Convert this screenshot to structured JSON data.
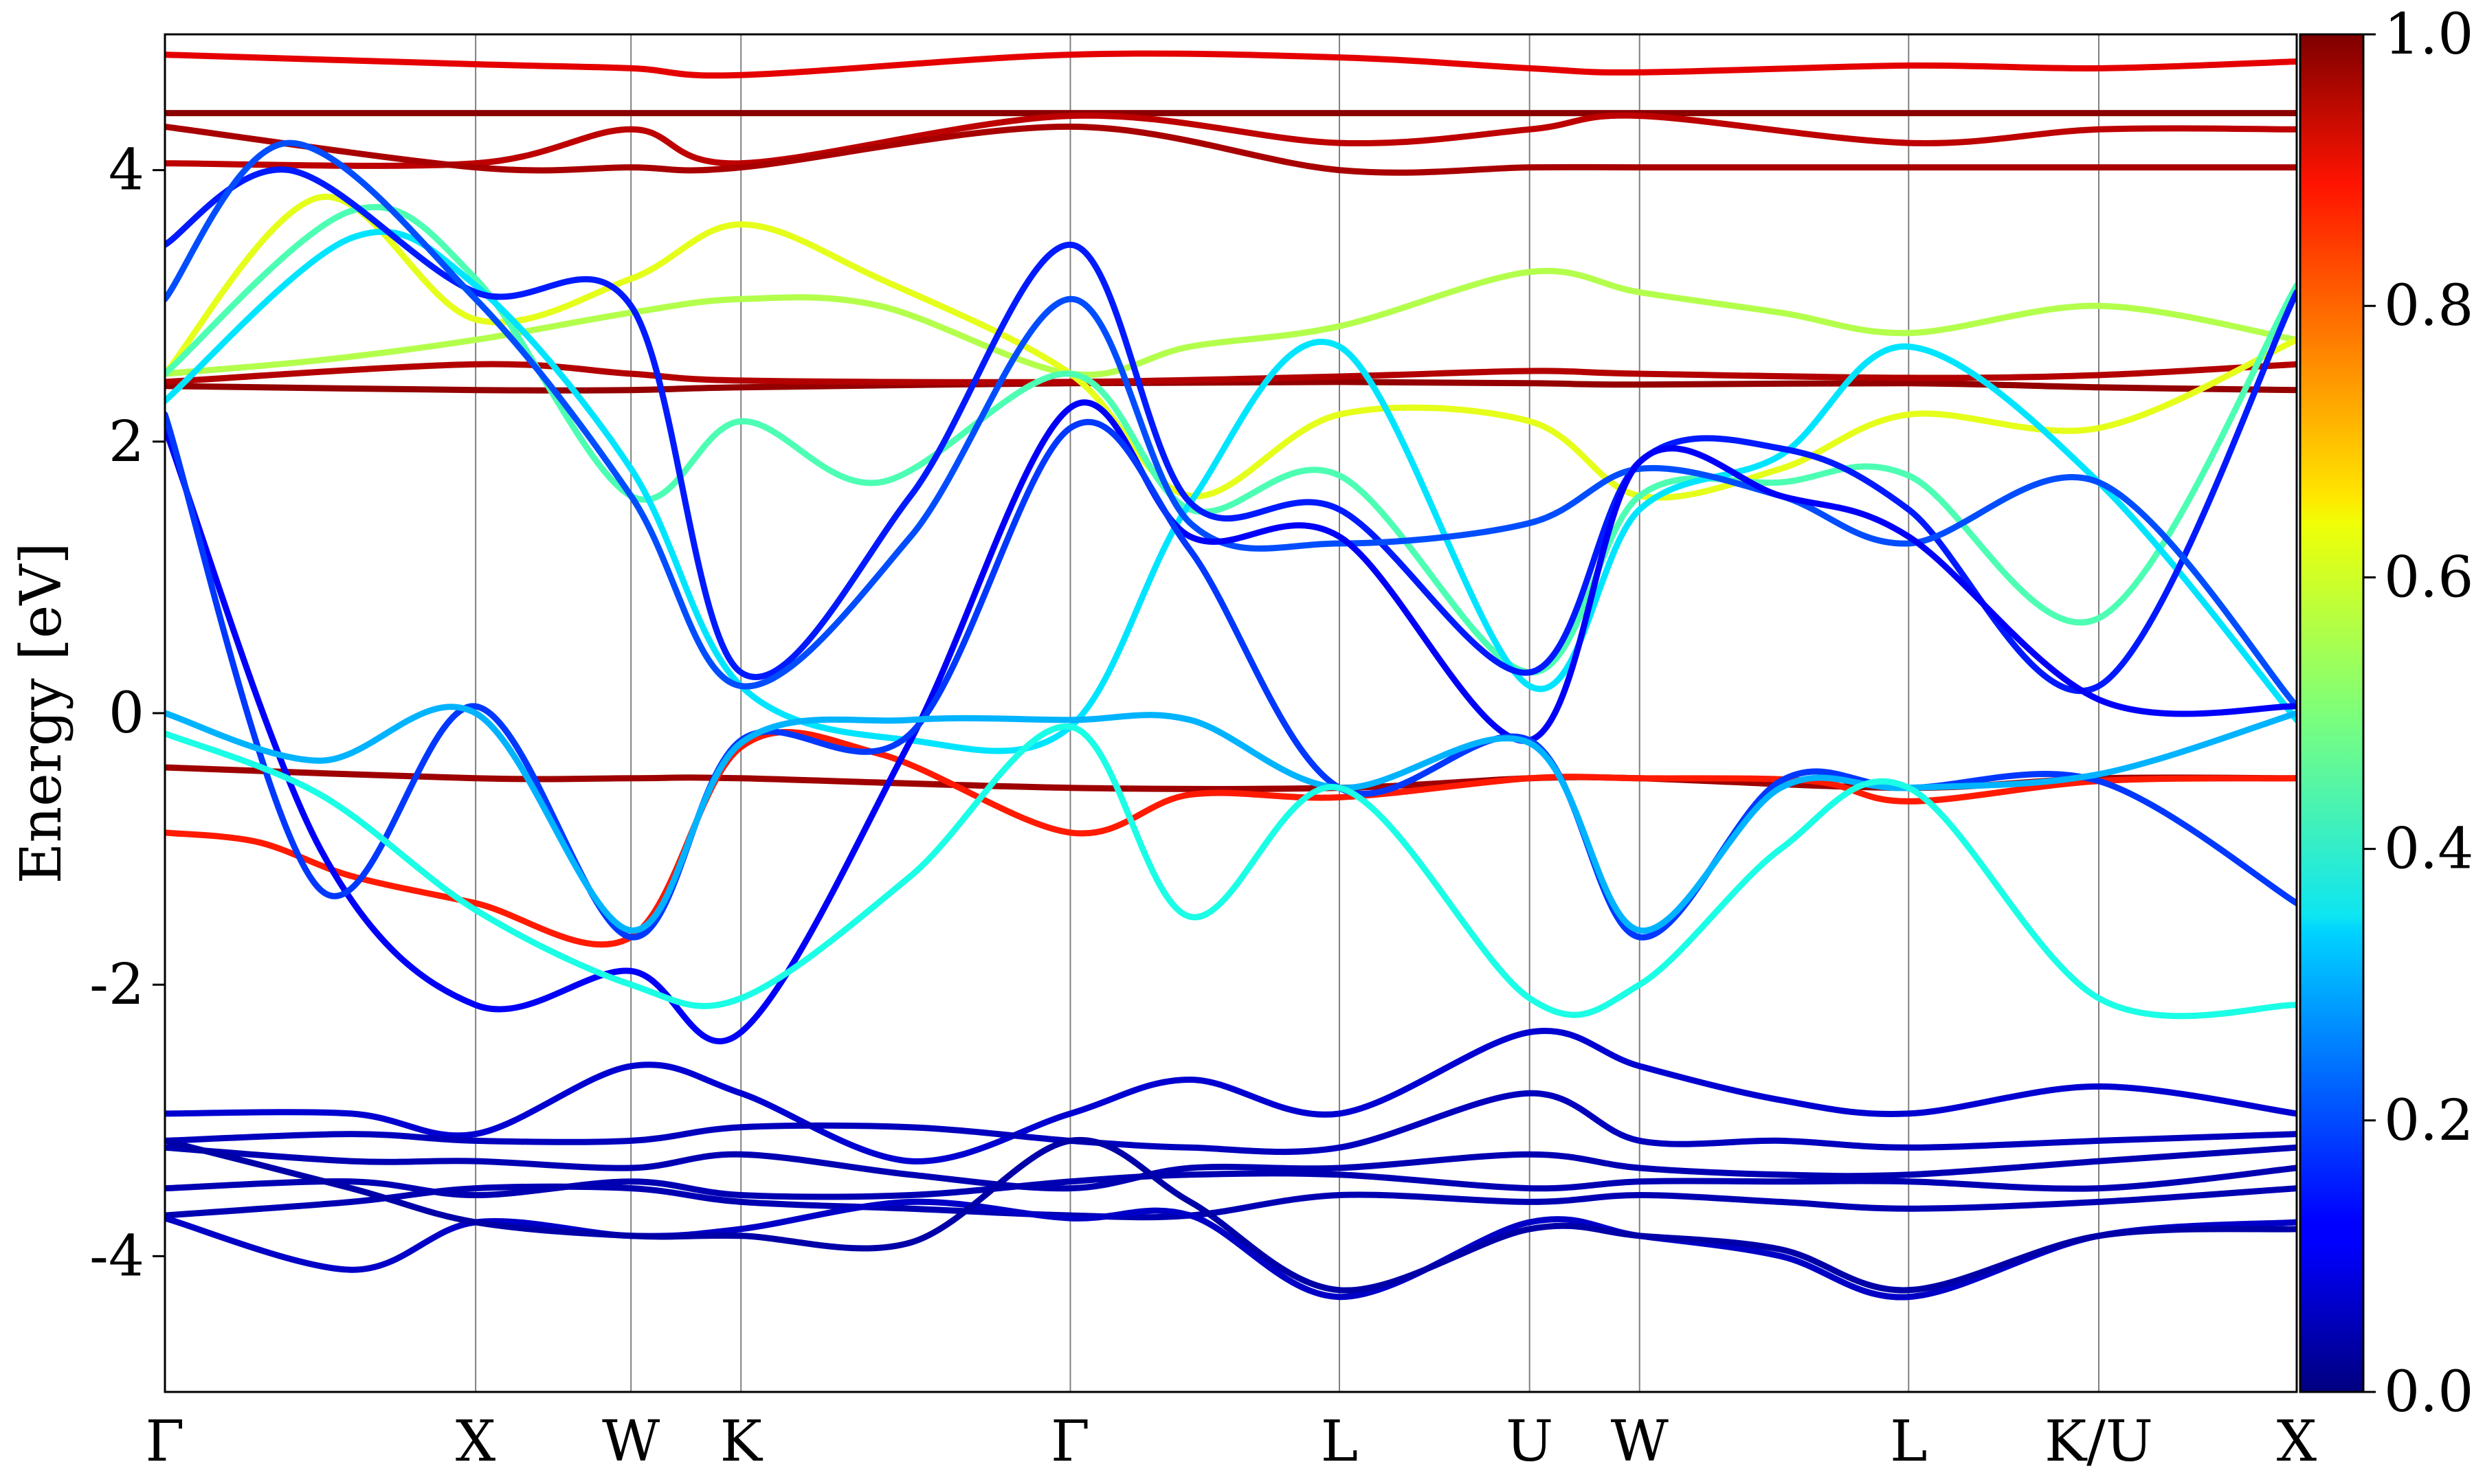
{
  "chart_data": {
    "type": "line",
    "title": "",
    "ylabel": "Energy [eV]",
    "xlabel": "",
    "ylim": [
      -5,
      5
    ],
    "yticks": [
      -4,
      -2,
      0,
      2,
      4
    ],
    "ytick_labels": [
      "-4",
      "-2",
      "0",
      "2",
      "4"
    ],
    "kpath_labels": [
      "Γ",
      "X",
      "W",
      "K",
      "Γ",
      "L",
      "U",
      "W",
      "L",
      "K/U",
      "X"
    ],
    "kpath_positions": [
      0.0,
      1.0,
      1.5,
      1.854,
      2.914,
      3.78,
      4.392,
      4.746,
      5.612,
      6.224,
      6.861
    ],
    "colorbar": {
      "min": 0.0,
      "max": 1.0,
      "tick_labels": [
        "0.0",
        "0.2",
        "0.4",
        "0.6",
        "0.8",
        "1.0"
      ],
      "colormap": "jet"
    },
    "series": [
      {
        "color": 0.98,
        "k": [
          0,
          1,
          1.5,
          1.854,
          2.914,
          3.78,
          4.392,
          4.746,
          5.612,
          6.224,
          6.861
        ],
        "e": [
          2.41,
          2.38,
          2.38,
          2.4,
          2.43,
          2.44,
          2.43,
          2.42,
          2.43,
          2.4,
          2.38
        ]
      },
      {
        "color": 0.95,
        "k": [
          0,
          1,
          1.5,
          1.854,
          2.914,
          3.78,
          4.392,
          4.746,
          5.612,
          6.224,
          6.861
        ],
        "e": [
          2.44,
          2.57,
          2.5,
          2.45,
          2.44,
          2.48,
          2.52,
          2.5,
          2.47,
          2.49,
          2.57
        ]
      },
      {
        "color": 0.99,
        "k": [
          0,
          1,
          1.5,
          1.854,
          2.914,
          3.78,
          4.392,
          4.746,
          5.612,
          6.224,
          6.861
        ],
        "e": [
          4.42,
          4.42,
          4.42,
          4.42,
          4.42,
          4.42,
          4.42,
          4.42,
          4.42,
          4.42,
          4.42
        ]
      },
      {
        "color": 0.9,
        "k": [
          0,
          1,
          1.5,
          1.854,
          2.914,
          3.78,
          4.392,
          4.746,
          5.612,
          6.224,
          6.861
        ],
        "e": [
          4.85,
          4.78,
          4.75,
          4.7,
          4.85,
          4.83,
          4.75,
          4.72,
          4.77,
          4.75,
          4.8
        ]
      },
      {
        "color": 0.94,
        "k": [
          0,
          1,
          1.5,
          1.854,
          2.914,
          3.78,
          4.392,
          4.746,
          5.612,
          6.224,
          6.861
        ],
        "e": [
          4.05,
          4.05,
          4.3,
          4.05,
          4.4,
          4.2,
          4.3,
          4.4,
          4.2,
          4.3,
          4.3
        ]
      },
      {
        "color": 0.96,
        "k": [
          0,
          1,
          1.5,
          1.854,
          2.914,
          3.78,
          4.392,
          4.746,
          5.612,
          6.224,
          6.861
        ],
        "e": [
          4.32,
          4.02,
          4.02,
          4.02,
          4.32,
          4.0,
          4.02,
          4.02,
          4.02,
          4.02,
          4.02
        ]
      },
      {
        "color": 0.97,
        "k": [
          0,
          1,
          1.5,
          1.854,
          2.914,
          3.78,
          4.392,
          4.746,
          5.612,
          6.224,
          6.861
        ],
        "e": [
          -0.4,
          -0.48,
          -0.48,
          -0.48,
          -0.55,
          -0.55,
          -0.48,
          -0.48,
          -0.55,
          -0.48,
          -0.48
        ]
      },
      {
        "color": 0.85,
        "k": [
          0,
          0.3,
          0.6,
          1,
          1.5,
          1.854,
          2.3,
          2.914,
          3.3,
          3.78,
          4.392,
          4.746,
          5.3,
          5.612,
          6.224,
          6.861
        ],
        "e": [
          -0.88,
          -0.95,
          -1.2,
          -1.4,
          -1.65,
          -0.25,
          -0.3,
          -0.88,
          -0.6,
          -0.62,
          -0.48,
          -0.48,
          -0.5,
          -0.65,
          -0.5,
          -0.48
        ]
      },
      {
        "color": 0.55,
        "k": [
          0,
          0.5,
          1,
          1.5,
          1.854,
          2.3,
          2.914,
          3.3,
          3.78,
          4.392,
          4.746,
          5.2,
          5.612,
          6.224,
          6.861
        ],
        "e": [
          2.5,
          2.6,
          2.75,
          2.95,
          3.05,
          3.0,
          2.5,
          2.7,
          2.85,
          3.25,
          3.1,
          2.95,
          2.8,
          3.0,
          2.75
        ]
      },
      {
        "color": 0.6,
        "k": [
          0,
          0.5,
          1,
          1.5,
          1.854,
          2.3,
          2.914,
          3.3,
          3.78,
          4.392,
          4.746,
          5.2,
          5.612,
          6.224,
          6.861
        ],
        "e": [
          2.5,
          3.8,
          2.9,
          3.2,
          3.6,
          3.2,
          2.5,
          1.6,
          2.2,
          2.15,
          1.6,
          1.8,
          2.2,
          2.1,
          2.75
        ]
      },
      {
        "color": 0.45,
        "k": [
          0,
          0.6,
          1,
          1.5,
          1.854,
          2.3,
          2.914,
          3.3,
          3.78,
          4.392,
          4.746,
          5.2,
          5.612,
          6.224,
          6.861
        ],
        "e": [
          2.5,
          3.7,
          3.2,
          1.6,
          2.15,
          1.7,
          2.5,
          1.5,
          1.75,
          0.3,
          1.6,
          1.7,
          1.75,
          0.7,
          3.15
        ]
      },
      {
        "color": 0.35,
        "k": [
          0,
          0.6,
          1,
          1.5,
          1.854,
          2.4,
          2.914,
          3.3,
          3.78,
          4.392,
          4.746,
          5.2,
          5.612,
          6.224,
          6.861
        ],
        "e": [
          2.3,
          3.5,
          3.15,
          1.8,
          0.2,
          -0.2,
          -0.1,
          1.55,
          2.7,
          0.2,
          1.5,
          1.9,
          2.7,
          1.7,
          -0.05
        ]
      },
      {
        "color": 0.15,
        "k": [
          0,
          0.4,
          1,
          1.5,
          1.854,
          2.4,
          2.914,
          3.3,
          3.78,
          4.392,
          4.746,
          5.2,
          5.612,
          6.224,
          6.861
        ],
        "e": [
          3.45,
          4.0,
          3.1,
          3.0,
          0.3,
          1.6,
          3.45,
          1.55,
          1.5,
          0.3,
          1.85,
          1.95,
          1.5,
          0.2,
          3.1
        ]
      },
      {
        "color": 0.2,
        "k": [
          0,
          0.4,
          1,
          1.5,
          1.854,
          2.4,
          2.914,
          3.3,
          3.78,
          4.392,
          4.746,
          5.2,
          5.612,
          6.224,
          6.861
        ],
        "e": [
          3.05,
          4.2,
          3.05,
          1.6,
          0.2,
          1.3,
          3.05,
          1.4,
          1.25,
          1.4,
          1.8,
          1.6,
          1.25,
          1.7,
          0.05
        ]
      },
      {
        "color": 0.12,
        "k": [
          0,
          0.5,
          1,
          1.5,
          1.854,
          2.4,
          2.914,
          3.3,
          3.78,
          4.392,
          4.746,
          5.2,
          5.612,
          6.224,
          6.861
        ],
        "e": [
          2.1,
          -1.0,
          -2.15,
          -1.9,
          -2.35,
          -0.2,
          2.25,
          1.3,
          1.3,
          -0.2,
          1.85,
          1.6,
          1.3,
          0.1,
          0.05
        ]
      },
      {
        "color": 0.18,
        "k": [
          0,
          0.5,
          1,
          1.5,
          1.854,
          2.4,
          2.914,
          3.3,
          3.78,
          4.392,
          4.746,
          5.2,
          5.612,
          6.224,
          6.861
        ],
        "e": [
          2.2,
          -1.3,
          0.05,
          -1.65,
          -0.2,
          -0.15,
          2.1,
          1.2,
          -0.55,
          -0.2,
          -1.65,
          -0.5,
          -0.55,
          -0.5,
          -1.4
        ]
      },
      {
        "color": 0.3,
        "k": [
          0,
          0.5,
          1,
          1.5,
          1.854,
          2.4,
          2.914,
          3.3,
          3.78,
          4.392,
          4.746,
          5.2,
          5.612,
          6.224,
          6.861
        ],
        "e": [
          0.0,
          -0.35,
          0.0,
          -1.6,
          -0.22,
          -0.05,
          -0.05,
          -0.05,
          -0.55,
          -0.22,
          -1.6,
          -0.55,
          -0.55,
          -0.45,
          0.0
        ]
      },
      {
        "color": 0.4,
        "k": [
          0,
          0.5,
          1,
          1.5,
          1.854,
          2.4,
          2.914,
          3.3,
          3.78,
          4.392,
          4.746,
          5.2,
          5.612,
          6.224,
          6.861
        ],
        "e": [
          -0.15,
          -0.6,
          -1.45,
          -2.0,
          -2.1,
          -1.2,
          -0.1,
          -1.5,
          -0.55,
          -2.1,
          -2.0,
          -1.0,
          -0.55,
          -2.1,
          -2.15
        ]
      },
      {
        "color": 0.08,
        "k": [
          0,
          0.6,
          1,
          1.5,
          1.854,
          2.4,
          2.914,
          3.3,
          3.78,
          4.392,
          4.746,
          5.2,
          5.612,
          6.224,
          6.861
        ],
        "e": [
          -2.95,
          -2.95,
          -3.1,
          -2.6,
          -2.8,
          -3.3,
          -2.95,
          -2.7,
          -2.95,
          -2.35,
          -2.6,
          -2.85,
          -2.95,
          -2.75,
          -2.95
        ]
      },
      {
        "color": 0.06,
        "k": [
          0,
          0.6,
          1,
          1.5,
          1.854,
          2.4,
          2.914,
          3.3,
          3.78,
          4.392,
          4.746,
          5.2,
          5.612,
          6.224,
          6.861
        ],
        "e": [
          -3.15,
          -3.1,
          -3.15,
          -3.15,
          -3.05,
          -3.05,
          -3.15,
          -3.2,
          -3.2,
          -2.8,
          -3.15,
          -3.15,
          -3.2,
          -3.15,
          -3.1
        ]
      },
      {
        "color": 0.05,
        "k": [
          0,
          0.6,
          1,
          1.5,
          1.854,
          2.4,
          2.914,
          3.3,
          3.78,
          4.392,
          4.746,
          5.2,
          5.612,
          6.224,
          6.861
        ],
        "e": [
          -3.2,
          -3.3,
          -3.3,
          -3.35,
          -3.25,
          -3.4,
          -3.5,
          -3.35,
          -3.35,
          -3.25,
          -3.35,
          -3.4,
          -3.4,
          -3.3,
          -3.2
        ]
      },
      {
        "color": 0.05,
        "k": [
          0,
          0.6,
          1,
          1.5,
          1.854,
          2.4,
          2.914,
          3.3,
          3.78,
          4.392,
          4.746,
          5.2,
          5.612,
          6.224,
          6.861
        ],
        "e": [
          -3.5,
          -3.45,
          -3.55,
          -3.45,
          -3.55,
          -3.55,
          -3.45,
          -3.4,
          -3.4,
          -3.5,
          -3.45,
          -3.45,
          -3.45,
          -3.5,
          -3.35
        ]
      },
      {
        "color": 0.05,
        "k": [
          0,
          0.6,
          1,
          1.5,
          1.854,
          2.4,
          2.914,
          3.3,
          3.78,
          4.392,
          4.746,
          5.2,
          5.612,
          6.224,
          6.861
        ],
        "e": [
          -3.7,
          -3.6,
          -3.5,
          -3.5,
          -3.6,
          -3.65,
          -3.7,
          -3.7,
          -3.55,
          -3.6,
          -3.55,
          -3.6,
          -3.65,
          -3.6,
          -3.5
        ]
      },
      {
        "color": 0.07,
        "k": [
          0,
          0.6,
          1,
          1.5,
          1.854,
          2.4,
          2.914,
          3.3,
          3.78,
          4.392,
          4.746,
          5.2,
          5.612,
          6.224,
          6.861
        ],
        "e": [
          -3.72,
          -4.1,
          -3.75,
          -3.85,
          -3.8,
          -3.6,
          -3.72,
          -3.7,
          -4.3,
          -3.75,
          -3.85,
          -4.0,
          -4.3,
          -3.85,
          -3.75
        ]
      },
      {
        "color": 0.04,
        "k": [
          0,
          0.6,
          1,
          1.5,
          1.854,
          2.4,
          2.914,
          3.3,
          3.78,
          4.392,
          4.746,
          5.2,
          5.612,
          6.224,
          6.861
        ],
        "e": [
          -3.15,
          -3.5,
          -3.75,
          -3.85,
          -3.85,
          -3.9,
          -3.15,
          -3.6,
          -4.25,
          -3.8,
          -3.85,
          -3.95,
          -4.25,
          -3.85,
          -3.8
        ]
      }
    ]
  }
}
